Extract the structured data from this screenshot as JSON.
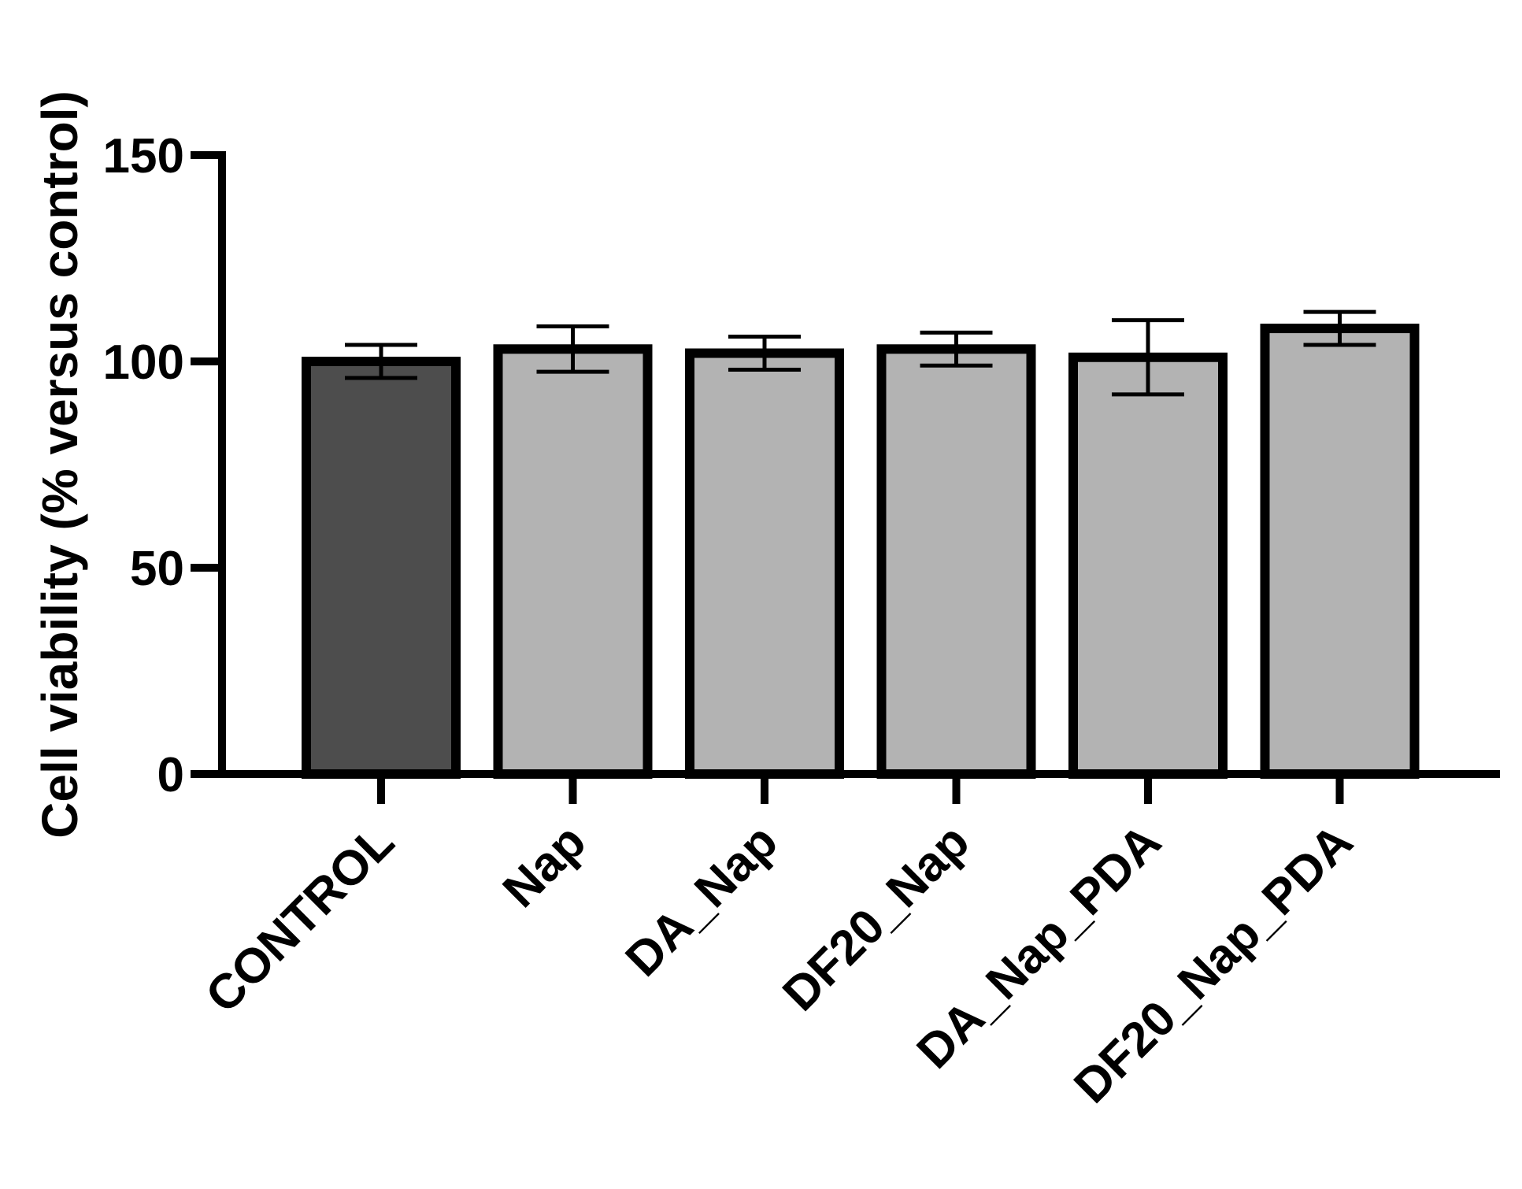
{
  "chart_data": {
    "type": "bar",
    "title": "",
    "xlabel": "",
    "ylabel": "Cell viability (% versus control)",
    "ylim": [
      0,
      150
    ],
    "yticks": [
      0,
      50,
      100,
      150
    ],
    "ytick_labels": [
      "0",
      "50",
      "100",
      "150"
    ],
    "grid": false,
    "legend": "none",
    "categories": [
      "CONTROL",
      "Nap",
      "DA_Nap",
      "DF20_Nap",
      "DA_Nap_PDA",
      "DF20_Nap_PDA"
    ],
    "values": [
      100,
      103,
      102,
      103,
      101,
      108
    ],
    "errors": [
      4,
      5.5,
      4,
      4,
      9,
      4
    ],
    "colors": [
      "#4d4d4d",
      "#b3b3b3",
      "#b3b3b3",
      "#b3b3b3",
      "#b3b3b3",
      "#b3b3b3"
    ],
    "edge_color": "#000000"
  }
}
